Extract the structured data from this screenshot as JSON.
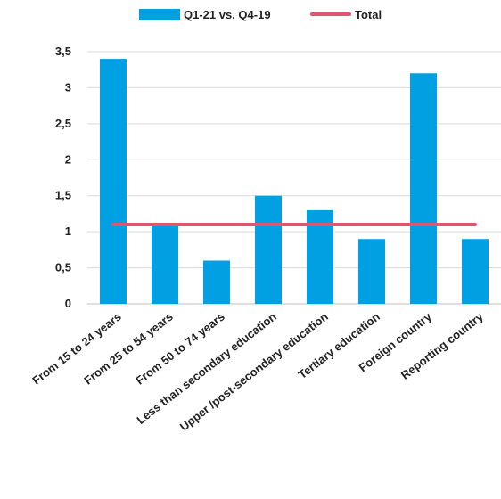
{
  "chart_data": {
    "type": "bar",
    "categories": [
      "From 15 to 24 years",
      "From 25 to 54 years",
      "From 50 to 74 years",
      "Less than secondary education",
      "Upper /post-secondary education",
      "Tertiary education",
      "Foreign country",
      "Reporting country"
    ],
    "series": [
      {
        "name": "Q1-21 vs. Q4-19",
        "type": "bar",
        "values": [
          3.4,
          1.1,
          0.6,
          1.5,
          1.3,
          0.9,
          3.2,
          0.9
        ]
      },
      {
        "name": "Total",
        "type": "line",
        "values": [
          1.1,
          1.1,
          1.1,
          1.1,
          1.1,
          1.1,
          1.1,
          1.1
        ]
      }
    ],
    "ylim": [
      0,
      3.5
    ],
    "yticks": [
      0,
      0.5,
      1,
      1.5,
      2,
      2.5,
      3,
      3.5
    ],
    "ytick_labels": [
      "0",
      "0,5",
      "1",
      "1,5",
      "2",
      "2,5",
      "3",
      "3,5"
    ],
    "grid": true,
    "legend_position": "top",
    "colors": {
      "bar": "#00A0E3",
      "line": "#E0566F",
      "grid": "#D9D9D9",
      "text": "#222222"
    }
  }
}
